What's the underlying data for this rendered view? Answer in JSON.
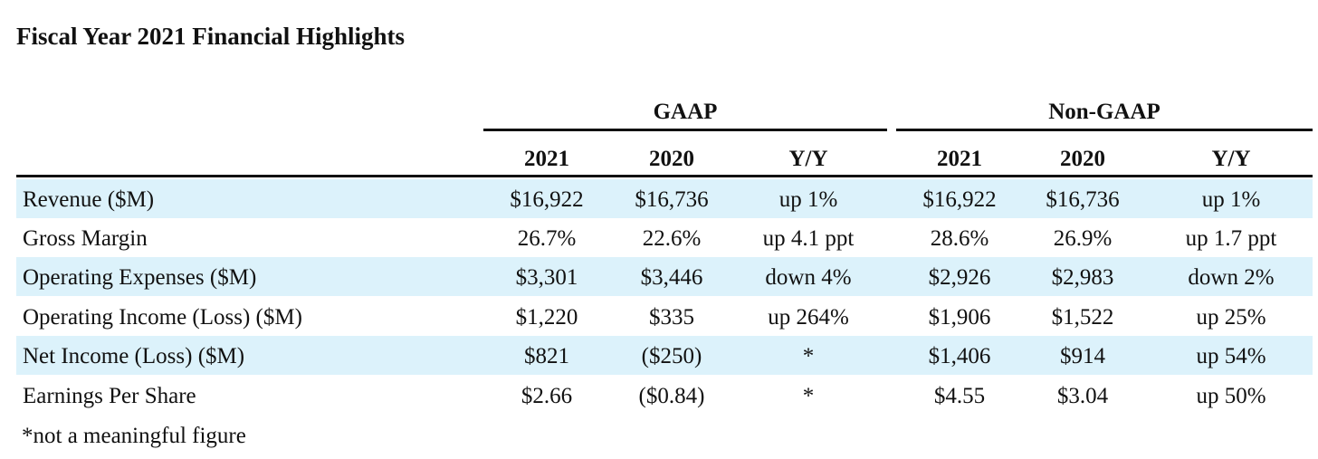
{
  "title": "Fiscal Year 2021 Financial Highlights",
  "groups": {
    "gaap": "GAAP",
    "non_gaap": "Non-GAAP"
  },
  "columns": [
    "2021",
    "2020",
    "Y/Y",
    "2021",
    "2020",
    "Y/Y"
  ],
  "rows": [
    {
      "label": "Revenue ($M)",
      "values": [
        "$16,922",
        "$16,736",
        "up 1%",
        "$16,922",
        "$16,736",
        "up 1%"
      ],
      "shaded": true
    },
    {
      "label": "Gross Margin",
      "values": [
        "26.7%",
        "22.6%",
        "up 4.1 ppt",
        "28.6%",
        "26.9%",
        "up 1.7 ppt"
      ],
      "shaded": false
    },
    {
      "label": "Operating Expenses ($M)",
      "values": [
        "$3,301",
        "$3,446",
        "down 4%",
        "$2,926",
        "$2,983",
        "down 2%"
      ],
      "shaded": true
    },
    {
      "label": "Operating Income (Loss) ($M)",
      "values": [
        "$1,220",
        "$335",
        "up 264%",
        "$1,906",
        "$1,522",
        "up 25%"
      ],
      "shaded": false
    },
    {
      "label": "Net Income (Loss) ($M)",
      "values": [
        "$821",
        "($250)",
        "*",
        "$1,406",
        "$914",
        "up 54%"
      ],
      "shaded": true
    },
    {
      "label": "Earnings Per Share",
      "values": [
        "$2.66",
        "($0.84)",
        "*",
        "$4.55",
        "$3.04",
        "up 50%"
      ],
      "shaded": false
    }
  ],
  "footnote": "*not a meaningful figure",
  "colors": {
    "row_shade": "#dcf2fb",
    "text": "#111111",
    "rule": "#111111"
  }
}
